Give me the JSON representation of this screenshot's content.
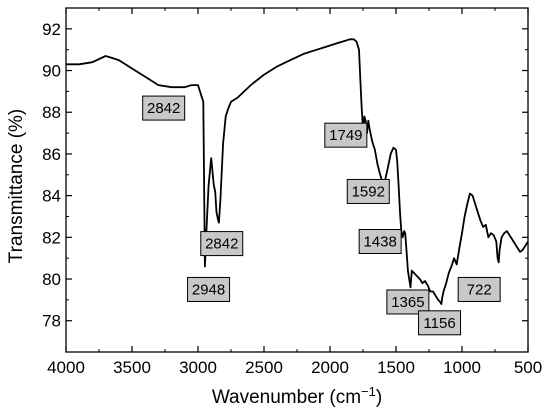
{
  "chart_data": {
    "type": "line",
    "xlabel": "Wavenumber (cm",
    "xlabel_sup": "−1",
    "xlabel_tail": ")",
    "ylabel": "Transmittance (%)",
    "xlim": [
      4000,
      500
    ],
    "ylim": [
      76.5,
      93
    ],
    "x_ticks": [
      4000,
      3500,
      3000,
      2500,
      2000,
      1500,
      1000,
      500
    ],
    "y_ticks": [
      78,
      80,
      82,
      84,
      86,
      88,
      90,
      92
    ],
    "x_tick_labels": [
      "4000",
      "3500",
      "3000",
      "2500",
      "2000",
      "1500",
      "1000",
      "500"
    ],
    "y_tick_labels": [
      "78",
      "80",
      "82",
      "84",
      "86",
      "88",
      "90",
      "92"
    ],
    "grid": false,
    "series": [
      {
        "x": [
          4000,
          3900,
          3800,
          3700,
          3650,
          3600,
          3500,
          3400,
          3300,
          3200,
          3100,
          3050,
          3000,
          2960,
          2948,
          2935,
          2920,
          2900,
          2880,
          2870,
          2860,
          2850,
          2842,
          2830,
          2810,
          2790,
          2770,
          2750,
          2700,
          2600,
          2500,
          2400,
          2300,
          2200,
          2100,
          2050,
          2000,
          1950,
          1900,
          1850,
          1820,
          1800,
          1780,
          1770,
          1760,
          1749,
          1740,
          1730,
          1720,
          1710,
          1700,
          1680,
          1660,
          1640,
          1620,
          1600,
          1592,
          1580,
          1560,
          1540,
          1520,
          1500,
          1490,
          1480,
          1470,
          1460,
          1450,
          1438,
          1430,
          1420,
          1410,
          1400,
          1390,
          1380,
          1365,
          1350,
          1320,
          1300,
          1280,
          1260,
          1240,
          1220,
          1200,
          1180,
          1165,
          1156,
          1150,
          1140,
          1120,
          1100,
          1080,
          1060,
          1040,
          1020,
          1000,
          980,
          960,
          940,
          920,
          900,
          880,
          860,
          840,
          820,
          800,
          780,
          760,
          740,
          730,
          722,
          715,
          700,
          680,
          660,
          640,
          620,
          600,
          580,
          560,
          540,
          520,
          500
        ],
        "y": [
          90.3,
          90.3,
          90.4,
          90.7,
          90.6,
          90.5,
          90.1,
          89.7,
          89.3,
          89.2,
          89.2,
          89.3,
          89.3,
          88.5,
          80.6,
          82.5,
          84.5,
          85.8,
          84.5,
          84.2,
          83.2,
          82.9,
          82.7,
          83.8,
          86.5,
          87.8,
          88.2,
          88.5,
          88.7,
          89.3,
          89.8,
          90.2,
          90.5,
          90.8,
          91.0,
          91.1,
          91.2,
          91.3,
          91.4,
          91.5,
          91.5,
          91.4,
          91.0,
          89.5,
          88.2,
          87.1,
          87.8,
          87.6,
          87.0,
          87.6,
          87.2,
          86.6,
          86.2,
          85.5,
          85.0,
          84.6,
          84.5,
          84.8,
          85.4,
          86.0,
          86.3,
          86.2,
          85.6,
          84.5,
          83.2,
          82.3,
          82.0,
          82.3,
          82.2,
          81.3,
          80.4,
          80.0,
          79.6,
          80.4,
          80.3,
          80.2,
          80.0,
          79.8,
          79.9,
          79.7,
          79.4,
          79.4,
          79.2,
          79.0,
          78.9,
          78.8,
          79.1,
          79.4,
          79.8,
          80.3,
          80.6,
          81.0,
          80.7,
          81.5,
          82.2,
          83.0,
          83.6,
          84.1,
          84.0,
          83.6,
          83.2,
          82.8,
          82.5,
          82.6,
          82.0,
          82.2,
          82.1,
          81.8,
          81.0,
          80.8,
          81.4,
          82.0,
          82.2,
          82.3,
          82.1,
          81.9,
          81.7,
          81.5,
          81.3,
          81.4,
          81.6,
          81.8
        ]
      }
    ],
    "annotations": [
      {
        "text": "2842",
        "at_x": 3260,
        "at_y": 88.2
      },
      {
        "text": "2948",
        "at_x": 2920,
        "at_y": 79.5
      },
      {
        "text": "2842",
        "at_x": 2820,
        "at_y": 81.7
      },
      {
        "text": "1749",
        "at_x": 1880,
        "at_y": 86.9
      },
      {
        "text": "1592",
        "at_x": 1710,
        "at_y": 84.2
      },
      {
        "text": "1438",
        "at_x": 1620,
        "at_y": 81.8
      },
      {
        "text": "1365",
        "at_x": 1410,
        "at_y": 78.9
      },
      {
        "text": "1156",
        "at_x": 1170,
        "at_y": 77.9
      },
      {
        "text": "722",
        "at_x": 870,
        "at_y": 79.5
      }
    ]
  }
}
